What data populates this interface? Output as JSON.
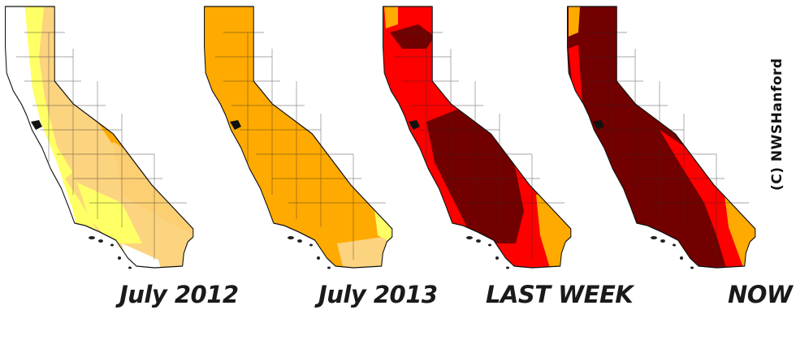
{
  "panels": [
    {
      "id": "july-2012",
      "label": "July 2012"
    },
    {
      "id": "july-2013",
      "label": "July 2013"
    },
    {
      "id": "last-week",
      "label": "LAST WEEK"
    },
    {
      "id": "now",
      "label": "NOW"
    }
  ],
  "credit": "(C) NWSHanford",
  "colors": {
    "none": "#ffffff",
    "abnormally_dry": "#ffff00",
    "moderate": "#fcd37f",
    "severe": "#ffaa00",
    "extreme": "#ff0000",
    "exceptional": "#730000"
  }
}
